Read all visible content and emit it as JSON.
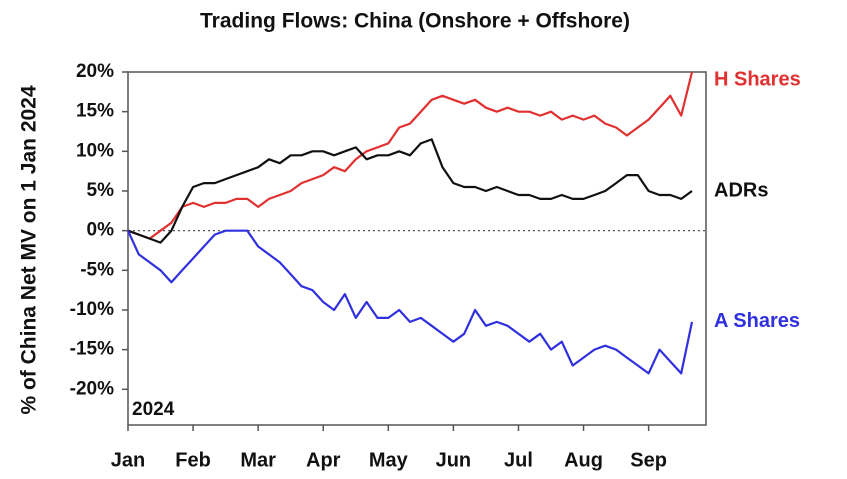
{
  "chart_data": {
    "type": "line",
    "title": "Trading Flows: China (Onshore + Offshore)",
    "y_label": "% of China Net MV on 1 Jan 2024",
    "annotation": "2024",
    "categories": [
      "Jan",
      null,
      null,
      null,
      null,
      null,
      "Feb",
      null,
      null,
      null,
      null,
      null,
      "Mar",
      null,
      null,
      null,
      null,
      null,
      "Apr",
      null,
      null,
      null,
      null,
      null,
      "May",
      null,
      null,
      null,
      null,
      null,
      "Jun",
      null,
      null,
      null,
      null,
      null,
      "Jul",
      null,
      null,
      null,
      null,
      null,
      "Aug",
      null,
      null,
      null,
      null,
      null,
      "Sep",
      null,
      null,
      null,
      null
    ],
    "ylim": [
      -24.5,
      20
    ],
    "yticks": [
      {
        "value": -20,
        "label": "-20%"
      },
      {
        "value": -15,
        "label": "-15%"
      },
      {
        "value": -10,
        "label": "-10%"
      },
      {
        "value": -5,
        "label": "-5%"
      },
      {
        "value": 0,
        "label": "0%"
      },
      {
        "value": 5,
        "label": "5%"
      },
      {
        "value": 10,
        "label": "10%"
      },
      {
        "value": 15,
        "label": "15%"
      },
      {
        "value": 20,
        "label": "20%"
      }
    ],
    "series": [
      {
        "name": "H Shares",
        "color": "#e03030",
        "values": [
          0,
          -0.5,
          -1,
          0,
          1,
          3,
          3.5,
          3,
          3.5,
          3.5,
          4,
          4,
          3,
          4,
          4.5,
          5,
          6,
          6.5,
          7,
          8,
          7.5,
          9,
          10,
          10.5,
          11,
          13,
          13.5,
          15,
          16.5,
          17,
          16.5,
          16,
          16.5,
          15.5,
          15,
          15.5,
          15,
          15,
          14.5,
          15,
          14,
          14.5,
          14,
          14.5,
          13.5,
          13,
          12,
          13,
          14,
          15.5,
          17,
          14.5,
          20
        ]
      },
      {
        "name": "ADRs",
        "color": "#111111",
        "values": [
          0,
          -0.5,
          -1,
          -1.5,
          0,
          3,
          5.5,
          6,
          6,
          6.5,
          7,
          7.5,
          8,
          9,
          8.5,
          9.5,
          9.5,
          10,
          10,
          9.5,
          10,
          10.5,
          9,
          9.5,
          9.5,
          10,
          9.5,
          11,
          11.5,
          8,
          6,
          5.5,
          5.5,
          5,
          5.5,
          5,
          4.5,
          4.5,
          4,
          4,
          4.5,
          4,
          4,
          4.5,
          5,
          6,
          7,
          7,
          5,
          4.5,
          4.5,
          4,
          5
        ]
      },
      {
        "name": "A Shares",
        "color": "#3030e0",
        "values": [
          0,
          -3,
          -4,
          -5,
          -6.5,
          -5,
          -3.5,
          -2,
          -0.5,
          0,
          0,
          0,
          -2,
          -3,
          -4,
          -5.5,
          -7,
          -7.5,
          -9,
          -10,
          -8,
          -11,
          -9,
          -11,
          -11,
          -10,
          -11.5,
          -11,
          -12,
          -13,
          -14,
          -13,
          -10,
          -12,
          -11.5,
          -12,
          -13,
          -14,
          -13,
          -15,
          -14,
          -17,
          -16,
          -15,
          -14.5,
          -15,
          -16,
          -17,
          -18,
          -15,
          -16.5,
          -18,
          -11.5
        ]
      }
    ]
  }
}
